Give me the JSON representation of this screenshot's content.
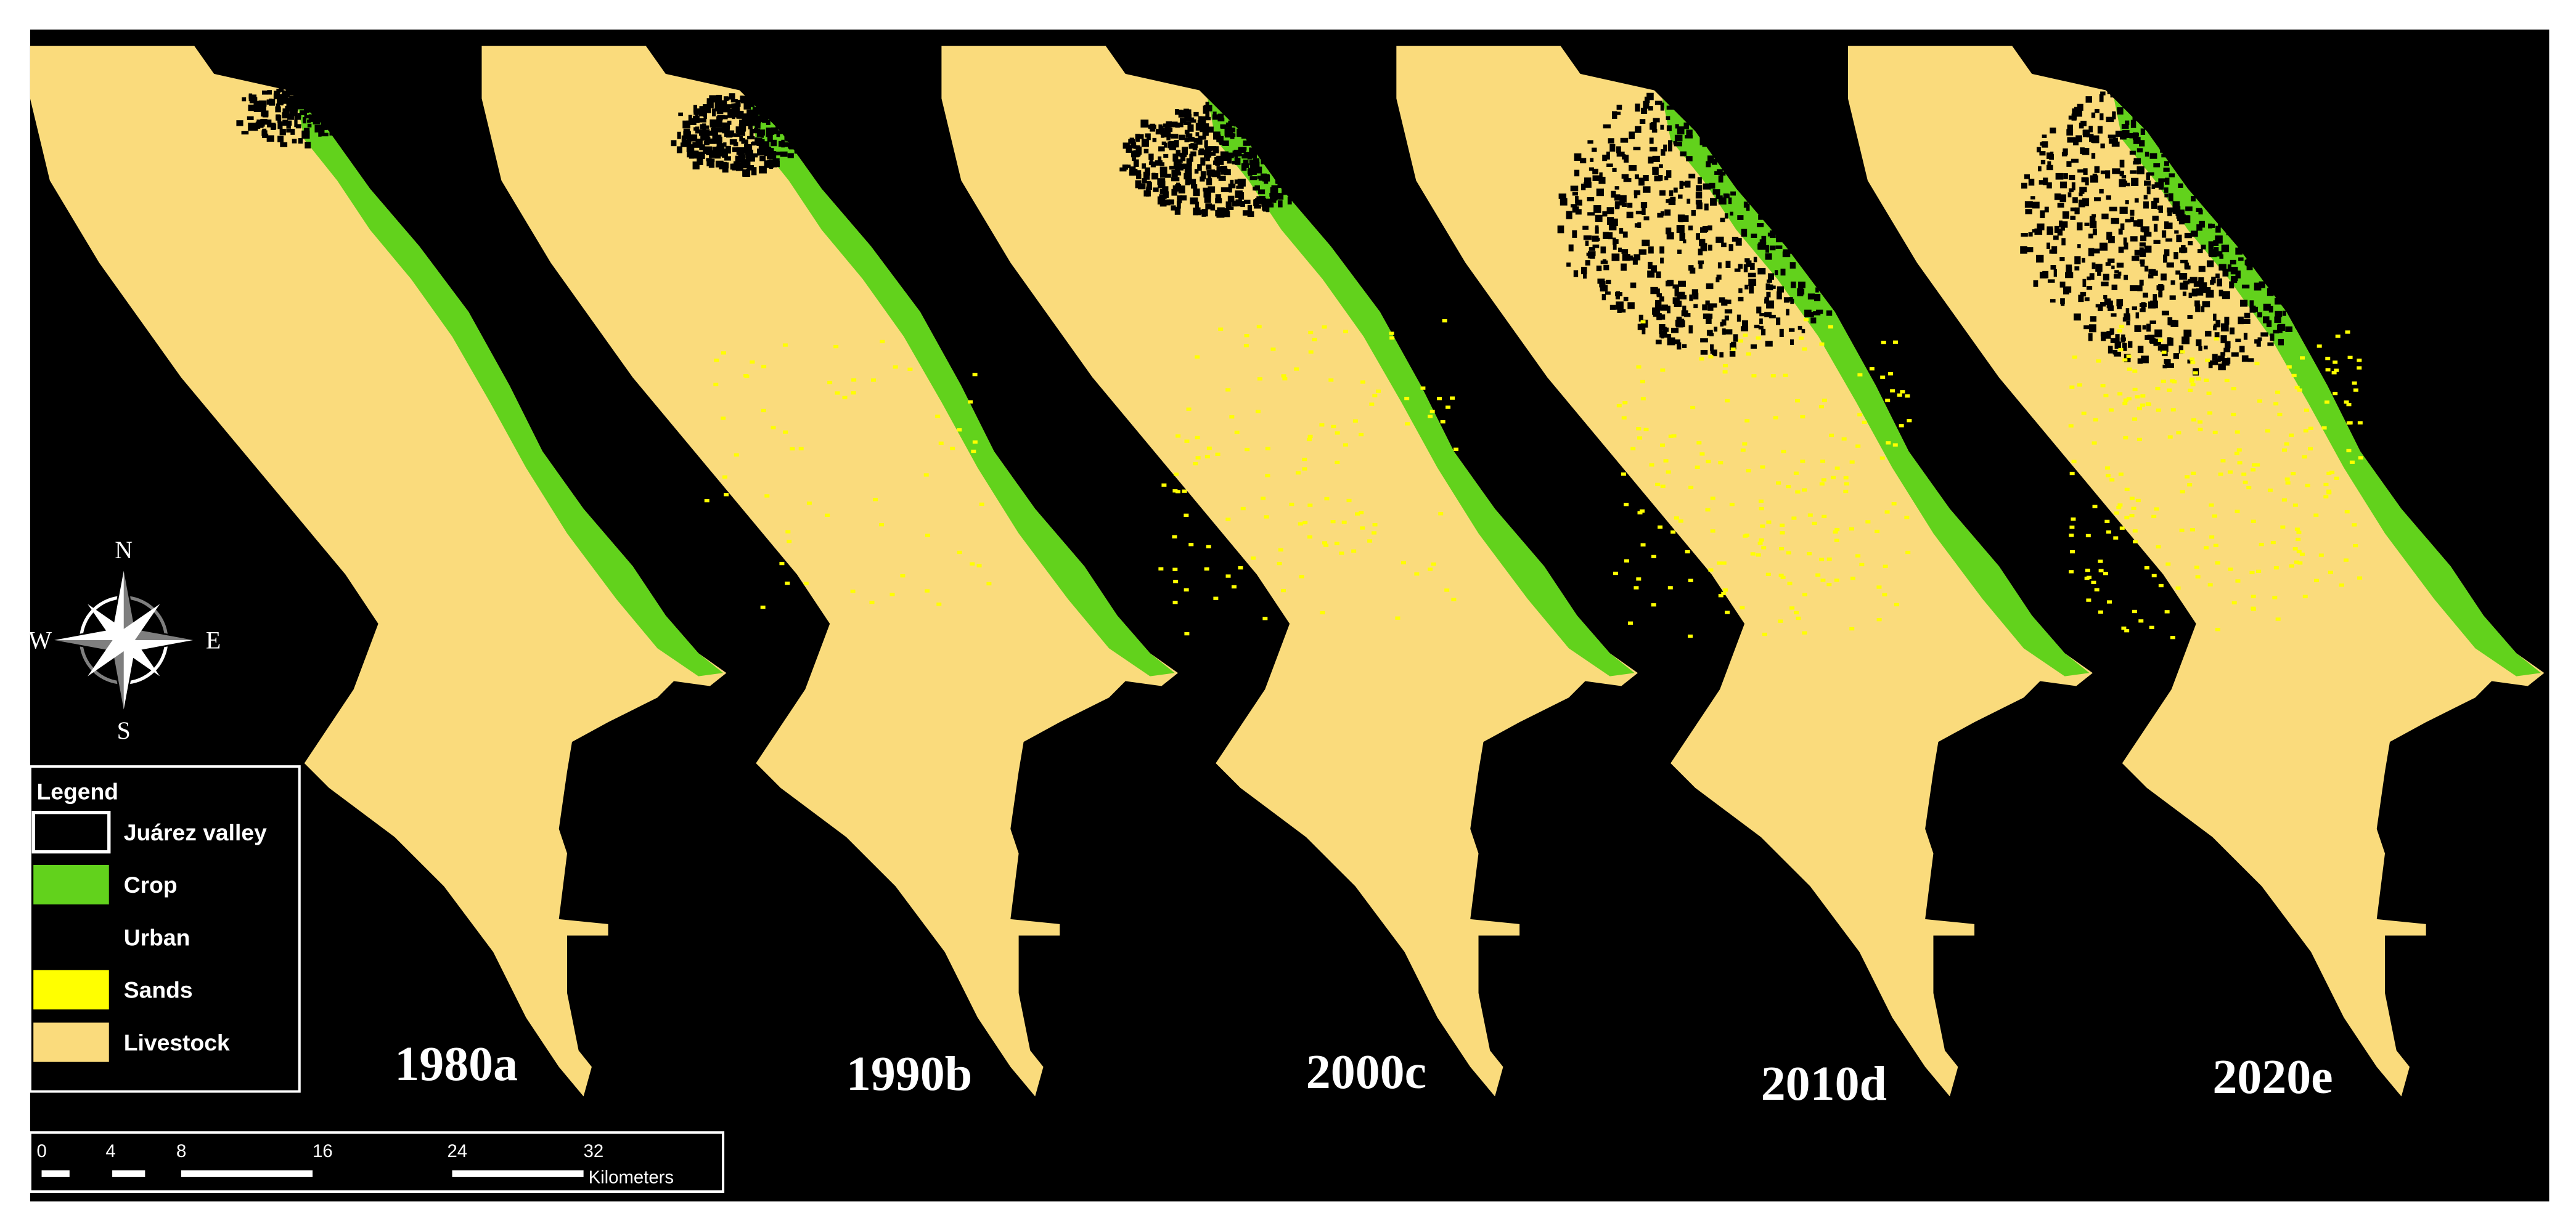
{
  "maps": [
    {
      "label": "1980a"
    },
    {
      "label": "1990b"
    },
    {
      "label": "2000c"
    },
    {
      "label": "2010d"
    },
    {
      "label": "2020e"
    }
  ],
  "legend": {
    "title": "Legend",
    "items": [
      {
        "label": "Juárez valley",
        "color": "#000000"
      },
      {
        "label": "Crop",
        "color": "#62d21c"
      },
      {
        "label": "Urban",
        "color": "#000000"
      },
      {
        "label": "Sands",
        "color": "#ffff00"
      },
      {
        "label": "Livestock",
        "color": "#fadb7c"
      }
    ]
  },
  "compass": {
    "n": "N",
    "e": "E",
    "s": "S",
    "w": "W"
  },
  "scale": {
    "ticks": [
      "0",
      "4",
      "8",
      "16",
      "24",
      "32"
    ],
    "unit": "Kilometers"
  }
}
